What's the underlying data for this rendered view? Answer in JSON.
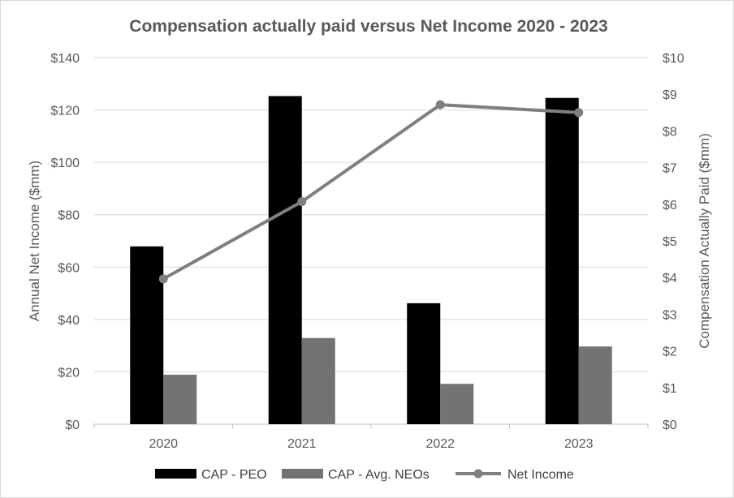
{
  "chart_data": {
    "type": "bar",
    "title": "Compensation actually paid versus Net Income 2020 - 2023",
    "categories": [
      "2020",
      "2021",
      "2022",
      "2023"
    ],
    "ylabel_left": "Annual Net Income ($mm)",
    "ylabel_right": "Compensation Actually Paid ($mm)",
    "y_left": {
      "lim": [
        0,
        140
      ],
      "ticks": [
        "$0",
        "$20",
        "$40",
        "$60",
        "$80",
        "$100",
        "$120",
        "$140"
      ]
    },
    "y_right": {
      "lim": [
        0,
        10
      ],
      "ticks": [
        "$0",
        "$1",
        "$2",
        "$3",
        "$4",
        "$5",
        "$6",
        "$7",
        "$8",
        "$9",
        "$10"
      ]
    },
    "grid": true,
    "legend_position": "bottom",
    "series": [
      {
        "name": "CAP - PEO",
        "type": "bar",
        "axis": "right",
        "color": "#000000",
        "values": [
          4.85,
          8.95,
          3.3,
          8.9
        ]
      },
      {
        "name": "CAP - Avg. NEOs",
        "type": "bar",
        "axis": "right",
        "color": "#737373",
        "values": [
          1.35,
          2.35,
          1.1,
          2.12
        ]
      },
      {
        "name": "Net Income",
        "type": "line",
        "axis": "left",
        "color": "#7f7f7f",
        "values": [
          55.5,
          85,
          122,
          119
        ]
      }
    ]
  }
}
